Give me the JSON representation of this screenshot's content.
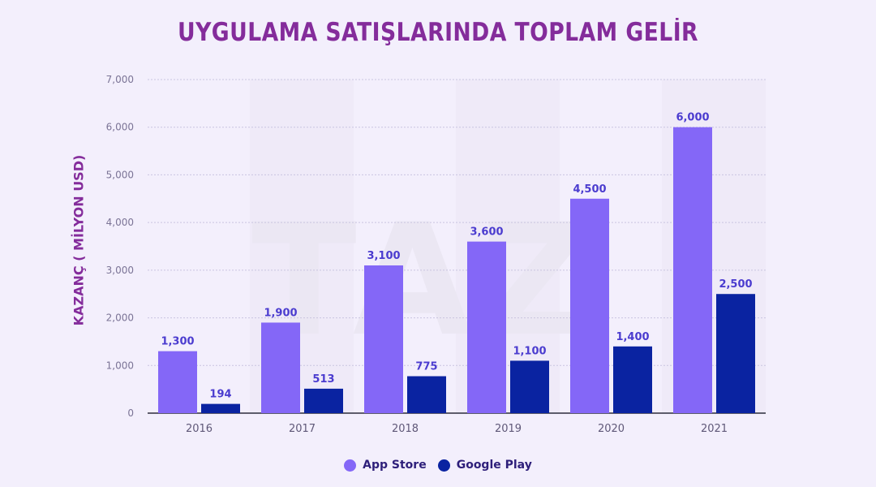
{
  "title": "UYGULAMA SATIŞLARINDA TOPLAM GELİR",
  "watermark": "TAZ",
  "colors": {
    "app_store": "#8467f7",
    "google_play": "#0a23a1",
    "title": "#842c9b",
    "grid": "#c9c4e0"
  },
  "chart_data": {
    "type": "bar",
    "title": "UYGULAMA SATIŞLARINDA TOPLAM GELİR",
    "xlabel": "",
    "ylabel": "KAZANÇ ( MİLYON USD)",
    "categories": [
      "2016",
      "2017",
      "2018",
      "2019",
      "2020",
      "2021"
    ],
    "series": [
      {
        "name": "App Store",
        "values": [
          1300,
          1900,
          3100,
          3600,
          4500,
          6000
        ],
        "labels": [
          "1,300",
          "1,900",
          "3,100",
          "3,600",
          "4,500",
          "6,000"
        ]
      },
      {
        "name": "Google Play",
        "values": [
          194,
          513,
          775,
          1100,
          1400,
          2500
        ],
        "labels": [
          "194",
          "513",
          "775",
          "1,100",
          "1,400",
          "2,500"
        ]
      }
    ],
    "ylim": [
      0,
      7000
    ],
    "yticks": [
      0,
      1000,
      2000,
      3000,
      4000,
      5000,
      6000,
      7000
    ],
    "ytick_labels": [
      "0",
      "1,000",
      "2,000",
      "3,000",
      "4,000",
      "5,000",
      "6,000",
      "7,000"
    ],
    "grid": true,
    "legend_position": "bottom-center"
  }
}
